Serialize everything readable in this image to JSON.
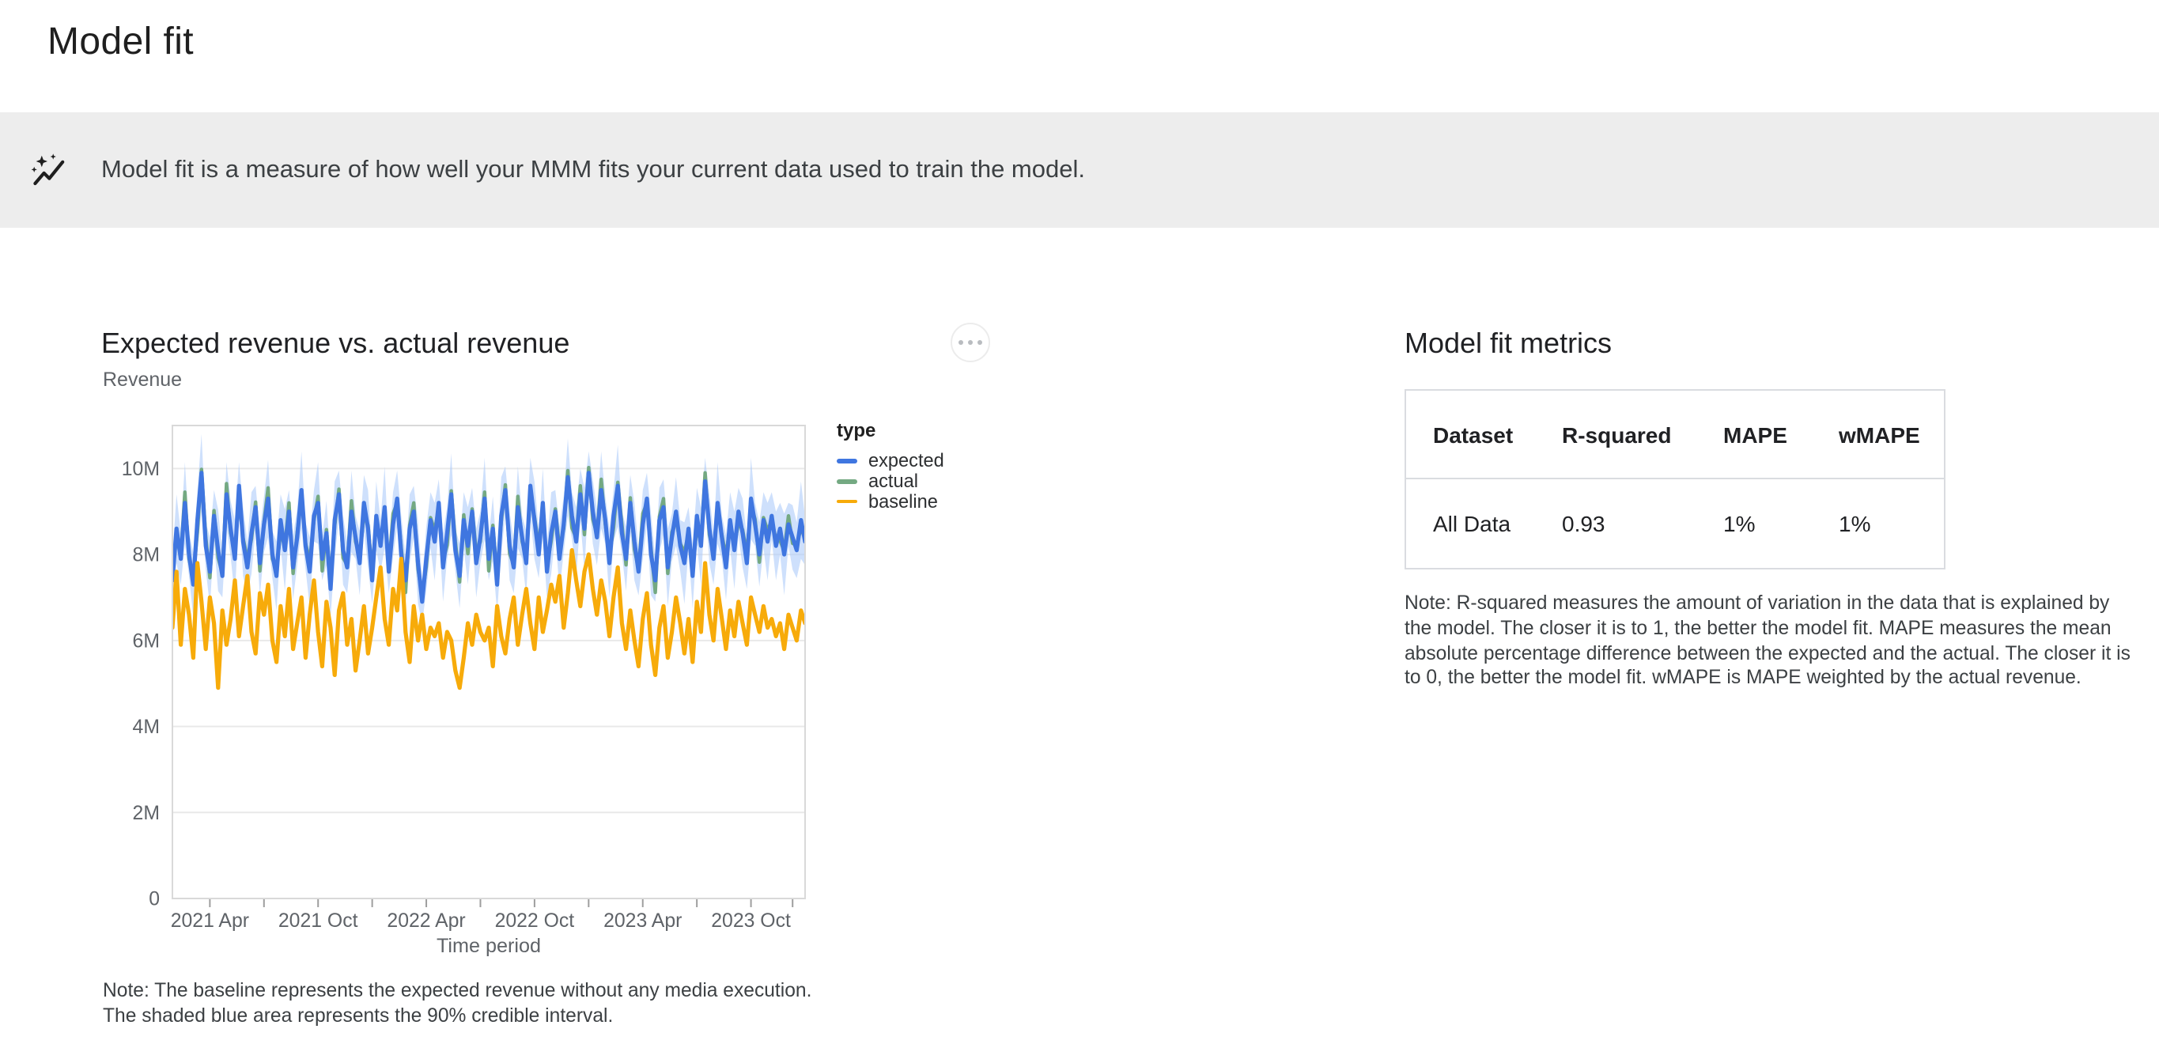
{
  "page": {
    "title": "Model fit"
  },
  "banner": {
    "icon": "auto-graph-insights-icon",
    "text": "Model fit is a measure of how well your MMM fits your current data used to train the model."
  },
  "chart_card": {
    "title": "Expected revenue vs. actual revenue",
    "y_axis_title": "Revenue",
    "x_axis_title": "Time period",
    "menu_button": "more-options",
    "note_lines": [
      "Note: The baseline represents the expected revenue without any media execution.",
      "The shaded blue area represents the 90% credible interval."
    ]
  },
  "chart_data": {
    "type": "line",
    "title": "Expected revenue vs. actual revenue",
    "xlabel": "Time period",
    "ylabel": "Revenue",
    "x_unit": "weeks",
    "x_range": [
      "2021 Feb",
      "2024 Jan"
    ],
    "ylim_millions": [
      0,
      11
    ],
    "y_tick_values": [
      0,
      2,
      4,
      6,
      8,
      10
    ],
    "y_tick_labels": [
      "0",
      "2M",
      "4M",
      "6M",
      "8M",
      "10M"
    ],
    "x_major_ticks": [
      {
        "label": "2021 Apr",
        "week": 9
      },
      {
        "label": "2021 Oct",
        "week": 35
      },
      {
        "label": "2022 Apr",
        "week": 61
      },
      {
        "label": "2022 Oct",
        "week": 87
      },
      {
        "label": "2023 Apr",
        "week": 113
      },
      {
        "label": "2023 Oct",
        "week": 139
      }
    ],
    "x_minor_tick_weeks": [
      22,
      48,
      74,
      100,
      126,
      149
    ],
    "legend_title": "type",
    "grid": true,
    "legend_position": "right",
    "series": [
      {
        "name": "expected",
        "color": "#3f76e0",
        "units": "millions",
        "values": [
          7.4,
          8.6,
          7.9,
          9.2,
          8.0,
          7.3,
          8.8,
          9.9,
          8.2,
          7.6,
          8.9,
          8.1,
          7.5,
          9.4,
          8.6,
          7.9,
          9.6,
          8.3,
          7.7,
          8.5,
          9.1,
          7.8,
          8.7,
          9.3,
          8.0,
          7.5,
          8.8,
          8.1,
          9.0,
          7.7,
          8.4,
          9.5,
          8.2,
          7.6,
          8.9,
          9.2,
          7.9,
          8.5,
          7.2,
          8.8,
          9.4,
          8.1,
          7.7,
          9.0,
          8.4,
          7.8,
          9.2,
          8.6,
          7.4,
          8.9,
          8.2,
          9.1,
          7.6,
          8.7,
          9.3,
          8.0,
          7.4,
          8.6,
          9.0,
          7.8,
          6.9,
          7.9,
          8.8,
          8.3,
          9.2,
          7.7,
          8.5,
          9.4,
          8.1,
          7.5,
          8.8,
          8.2,
          9.0,
          7.8,
          8.4,
          9.3,
          7.9,
          8.6,
          7.3,
          8.9,
          9.5,
          8.2,
          7.7,
          9.1,
          8.4,
          7.8,
          9.6,
          8.8,
          8.0,
          9.2,
          7.6,
          8.5,
          9.0,
          7.9,
          8.7,
          9.8,
          8.9,
          8.3,
          9.4,
          8.6,
          9.9,
          9.0,
          8.4,
          9.5,
          8.8,
          7.8,
          8.9,
          9.6,
          8.5,
          7.9,
          9.2,
          8.3,
          7.6,
          8.7,
          9.3,
          8.0,
          7.4,
          8.8,
          9.1,
          7.7,
          8.4,
          9.0,
          8.2,
          7.8,
          8.6,
          7.5,
          8.9,
          8.2,
          9.7,
          8.6,
          7.9,
          9.2,
          8.4,
          7.7,
          8.8,
          8.1,
          9.0,
          8.5,
          7.8,
          9.3,
          8.7,
          8.0,
          8.8,
          8.3,
          8.9,
          8.2,
          8.6,
          8.0,
          8.7,
          8.4,
          8.1,
          8.8,
          8.3
        ]
      },
      {
        "name": "actual",
        "color": "#74a982",
        "units": "millions",
        "derived_from": "expected",
        "delta_pattern": [
          0.12,
          -0.18,
          0.06,
          0.25,
          -0.1,
          0.15,
          -0.28,
          0.08,
          0.2,
          -0.14
        ]
      },
      {
        "name": "baseline",
        "color": "#f7ab0a",
        "units": "millions",
        "values": [
          6.3,
          7.6,
          5.9,
          7.2,
          6.6,
          5.6,
          7.8,
          6.9,
          5.8,
          7.0,
          6.4,
          4.9,
          6.7,
          5.9,
          6.5,
          7.4,
          6.1,
          6.8,
          7.5,
          6.2,
          5.7,
          7.1,
          6.6,
          7.3,
          6.0,
          5.5,
          6.8,
          6.1,
          7.2,
          5.8,
          6.4,
          7.0,
          5.6,
          6.6,
          7.4,
          6.2,
          5.4,
          6.9,
          6.3,
          5.2,
          6.7,
          7.1,
          5.9,
          6.5,
          5.3,
          6.0,
          6.8,
          5.7,
          6.3,
          7.0,
          7.7,
          6.5,
          5.9,
          7.2,
          6.7,
          7.9,
          6.2,
          5.5,
          6.8,
          6.0,
          6.6,
          5.8,
          6.3,
          6.1,
          6.4,
          5.6,
          6.2,
          6.0,
          5.3,
          4.9,
          5.6,
          6.4,
          5.9,
          6.6,
          6.2,
          6.0,
          6.3,
          5.4,
          6.8,
          6.1,
          5.7,
          6.5,
          7.0,
          5.9,
          6.6,
          7.2,
          6.4,
          5.8,
          7.0,
          6.2,
          6.7,
          7.3,
          6.9,
          7.5,
          6.3,
          7.1,
          8.1,
          7.4,
          6.8,
          7.6,
          8.0,
          7.2,
          6.6,
          7.4,
          6.9,
          6.1,
          7.0,
          7.7,
          6.4,
          5.8,
          6.7,
          6.0,
          5.4,
          6.5,
          7.1,
          5.9,
          5.2,
          6.3,
          6.8,
          5.6,
          6.2,
          7.0,
          6.4,
          5.7,
          6.5,
          5.5,
          6.9,
          6.2,
          7.8,
          6.6,
          6.0,
          7.2,
          6.5,
          5.8,
          6.7,
          6.1,
          6.9,
          6.4,
          5.9,
          7.0,
          6.6,
          6.2,
          6.8,
          6.3,
          6.5,
          6.1,
          6.4,
          5.8,
          6.6,
          6.3,
          6.0,
          6.7,
          6.4
        ]
      }
    ],
    "band": {
      "name": "90% credible interval",
      "around": "expected",
      "color": "#aecbfa",
      "opacity": 0.6,
      "halfwidth_pattern_millions": [
        0.55,
        0.8,
        0.6,
        0.95,
        0.5,
        0.75,
        0.65,
        0.9
      ]
    }
  },
  "metrics_panel": {
    "title": "Model fit metrics",
    "table": {
      "headers": [
        "Dataset",
        "R-squared",
        "MAPE",
        "wMAPE"
      ],
      "rows": [
        [
          "All Data",
          "0.93",
          "1%",
          "1%"
        ]
      ]
    },
    "note_lines": [
      "Note: R-squared measures the amount of variation in the data that is explained by",
      "the model. The closer it is to 1, the better the model fit. MAPE measures the mean",
      "absolute percentage difference between the expected and the actual. The closer it is",
      "to 0, the better the model fit. wMAPE is MAPE weighted by the actual revenue."
    ]
  },
  "colors": {
    "banner_bg": "#ededed",
    "grid_line": "#e9e9e9",
    "plot_border": "#d9d9d9",
    "tick": "#9e9e9e",
    "axis_text": "#5f6368"
  }
}
